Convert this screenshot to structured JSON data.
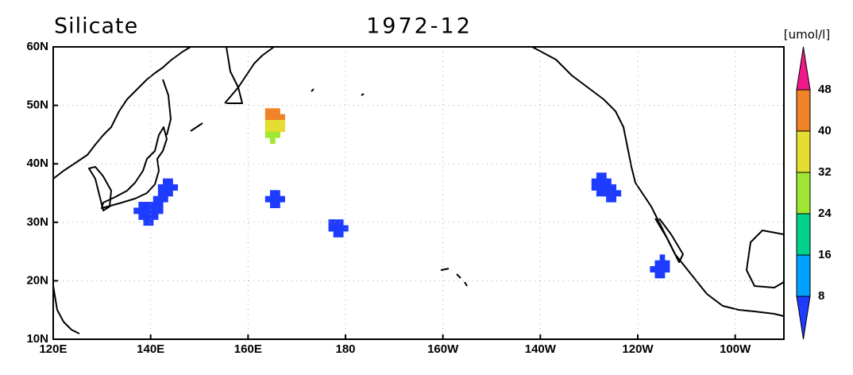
{
  "chart_data": {
    "type": "grid-map",
    "title": "Silicate",
    "subtitle": "1972-12",
    "units": "[umol/l]",
    "xlim": [
      120,
      270
    ],
    "ylim": [
      10,
      60
    ],
    "xticks": [
      {
        "value": 120,
        "label": "120E"
      },
      {
        "value": 140,
        "label": "140E"
      },
      {
        "value": 160,
        "label": "160E"
      },
      180,
      {
        "value": 200,
        "label": "160W"
      },
      {
        "value": 220,
        "label": "140W"
      },
      {
        "value": 240,
        "label": "120W"
      },
      {
        "value": 260,
        "label": "100W"
      }
    ],
    "yticks": [
      {
        "value": 10,
        "label": "10N"
      },
      {
        "value": 20,
        "label": "20N"
      },
      {
        "value": 30,
        "label": "30N"
      },
      {
        "value": 40,
        "label": "40N"
      },
      {
        "value": 50,
        "label": "50N"
      },
      {
        "value": 60,
        "label": "60N"
      }
    ],
    "grid": true,
    "levels": [
      8,
      16,
      24,
      32,
      40,
      48
    ],
    "colors": [
      "#1e3cff",
      "#00a0ff",
      "#00d28c",
      "#a0e632",
      "#e6dc32",
      "#f08228",
      "#f0198c"
    ],
    "cells": [
      [
        139,
        30,
        4
      ],
      [
        140,
        30,
        4
      ],
      [
        138,
        31,
        4
      ],
      [
        139,
        31,
        4
      ],
      [
        140,
        31,
        4
      ],
      [
        141,
        31,
        4
      ],
      [
        137,
        32,
        4
      ],
      [
        138,
        32,
        4
      ],
      [
        139,
        32,
        4
      ],
      [
        140,
        32,
        4
      ],
      [
        141,
        32,
        4
      ],
      [
        142,
        32,
        4
      ],
      [
        138,
        33,
        4
      ],
      [
        139,
        33,
        4
      ],
      [
        140,
        33,
        4
      ],
      [
        141,
        33,
        4
      ],
      [
        142,
        33,
        4
      ],
      [
        141,
        34,
        4
      ],
      [
        142,
        34,
        4
      ],
      [
        143,
        34,
        4
      ],
      [
        142,
        35,
        4
      ],
      [
        143,
        35,
        4
      ],
      [
        144,
        35,
        4
      ],
      [
        142,
        36,
        4
      ],
      [
        143,
        36,
        4
      ],
      [
        144,
        36,
        4
      ],
      [
        145,
        36,
        4
      ],
      [
        143,
        37,
        4
      ],
      [
        144,
        37,
        4
      ],
      [
        164,
        49,
        44
      ],
      [
        165,
        49,
        44
      ],
      [
        166,
        49,
        44
      ],
      [
        164,
        48,
        42
      ],
      [
        165,
        48,
        42
      ],
      [
        166,
        48,
        42
      ],
      [
        167,
        48,
        42
      ],
      [
        164,
        47,
        38
      ],
      [
        165,
        47,
        38
      ],
      [
        166,
        47,
        38
      ],
      [
        167,
        47,
        38
      ],
      [
        164,
        46,
        34
      ],
      [
        165,
        46,
        34
      ],
      [
        166,
        46,
        34
      ],
      [
        167,
        46,
        34
      ],
      [
        164,
        45,
        30
      ],
      [
        165,
        45,
        30
      ],
      [
        166,
        45,
        30
      ],
      [
        165,
        44,
        26
      ],
      [
        165,
        35,
        4
      ],
      [
        166,
        35,
        4
      ],
      [
        164,
        34,
        4
      ],
      [
        165,
        34,
        4
      ],
      [
        166,
        34,
        4
      ],
      [
        167,
        34,
        4
      ],
      [
        165,
        33,
        4
      ],
      [
        166,
        33,
        4
      ],
      [
        177,
        30,
        4
      ],
      [
        178,
        30,
        4
      ],
      [
        179,
        30,
        4
      ],
      [
        177,
        29,
        4
      ],
      [
        178,
        29,
        4
      ],
      [
        179,
        29,
        4
      ],
      [
        180,
        29,
        4
      ],
      [
        178,
        28,
        4
      ],
      [
        179,
        28,
        4
      ],
      [
        232,
        38,
        4
      ],
      [
        233,
        38,
        4
      ],
      [
        231,
        37,
        4
      ],
      [
        232,
        37,
        4
      ],
      [
        233,
        37,
        4
      ],
      [
        234,
        37,
        4
      ],
      [
        231,
        36,
        4
      ],
      [
        232,
        36,
        4
      ],
      [
        233,
        36,
        4
      ],
      [
        234,
        36,
        4
      ],
      [
        235,
        36,
        4
      ],
      [
        232,
        35,
        4
      ],
      [
        233,
        35,
        4
      ],
      [
        234,
        35,
        4
      ],
      [
        235,
        35,
        4
      ],
      [
        236,
        35,
        4
      ],
      [
        234,
        34,
        4
      ],
      [
        235,
        34,
        4
      ],
      [
        245,
        24,
        4
      ],
      [
        244,
        23,
        4
      ],
      [
        245,
        23,
        4
      ],
      [
        246,
        23,
        4
      ],
      [
        243,
        22,
        4
      ],
      [
        244,
        22,
        4
      ],
      [
        245,
        22,
        4
      ],
      [
        246,
        22,
        4
      ],
      [
        244,
        21,
        4
      ],
      [
        245,
        21,
        4
      ]
    ]
  }
}
